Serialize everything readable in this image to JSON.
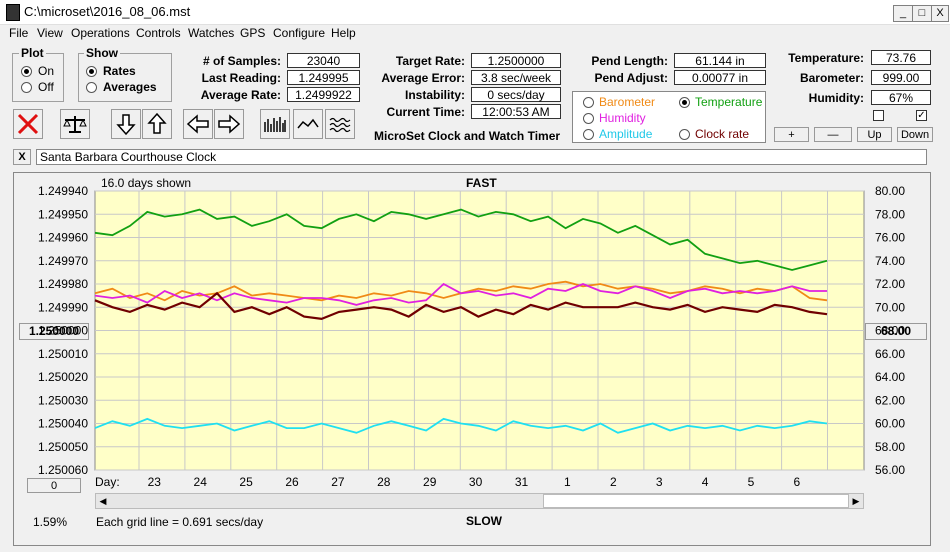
{
  "window": {
    "title": "C:\\microset\\2016_08_06.mst",
    "min": "_",
    "max": "□",
    "close": "X"
  },
  "menu": [
    "File",
    "View",
    "Operations",
    "Controls",
    "Watches",
    "GPS",
    "Configure",
    "Help"
  ],
  "plot_group": {
    "label": "Plot",
    "on": "On",
    "off": "Off",
    "selected": "On"
  },
  "show_group": {
    "label": "Show",
    "rates": "Rates",
    "averages": "Averages",
    "selected": "Rates"
  },
  "stats": {
    "samples_label": "# of Samples:",
    "samples": "23040",
    "last_label": "Last Reading:",
    "last": "1.249995",
    "avg_rate_label": "Average Rate:",
    "avg_rate": "1.2499922",
    "target_label": "Target Rate:",
    "target": "1.2500000",
    "avg_error_label": "Average Error:",
    "avg_error": "3.8 sec/week",
    "instability_label": "Instability:",
    "instability": "0 secs/day",
    "time_label": "Current Time:",
    "time": "12:00:53 AM",
    "pend_len_label": "Pend Length:",
    "pend_len": "61.144 in",
    "pend_adj_label": "Pend Adjust:",
    "pend_adj": "0.00077 in",
    "temp_label": "Temperature:",
    "temp": "73.76",
    "baro_label": "Barometer:",
    "baro": "999.00",
    "hum_label": "Humidity:",
    "hum": "67%"
  },
  "product_title": "MicroSet Clock and Watch Timer",
  "series_select": {
    "barometer": "Barometer",
    "temperature": "Temperature",
    "humidity": "Humidity",
    "amplitude": "Amplitude",
    "clock_rate": "Clock rate",
    "selected": "Temperature",
    "colors": {
      "barometer": "#f08a16",
      "temperature": "#12a012",
      "humidity": "#e020e0",
      "amplitude": "#20e0f0",
      "clock_rate": "#700000"
    }
  },
  "adjust_buttons": {
    "plus": "+",
    "minus": "—",
    "up": "Up",
    "down": "Down"
  },
  "toolbar_icons": [
    "stop-icon",
    "balance-icon",
    "arrow-down-icon",
    "arrow-up-icon",
    "arrow-left-icon",
    "arrow-right-icon",
    "bar-graph-icon",
    "line-graph-icon",
    "wave-graph-icon"
  ],
  "clock_name": "Santa Barbara Courthouse Clock",
  "clear_button": "X",
  "chart_header": {
    "days_shown": "16.0 days shown",
    "fast": "FAST",
    "slow": "SLOW",
    "grid_note": "Each grid line = 0.691 secs/day",
    "percent": "1.59%",
    "left_button": "1.250000",
    "right_button": "68.00",
    "zero_button": "0",
    "day_label": "Day:"
  },
  "chart_data": {
    "type": "line",
    "x_ticks": [
      "23",
      "24",
      "25",
      "26",
      "27",
      "28",
      "29",
      "30",
      "31",
      "1",
      "2",
      "3",
      "4",
      "5",
      "6"
    ],
    "left_axis": {
      "ticks": [
        "1.249940",
        "1.249950",
        "1.249960",
        "1.249970",
        "1.249980",
        "1.249990",
        "1.250000",
        "1.250010",
        "1.250020",
        "1.250030",
        "1.250040",
        "1.250050",
        "1.250060"
      ],
      "ylim": [
        1.24994,
        1.25006
      ],
      "inverted": true
    },
    "right_axis": {
      "ticks": [
        "80.00",
        "78.00",
        "76.00",
        "74.00",
        "72.00",
        "70.00",
        "68.00",
        "66.00",
        "64.00",
        "62.00",
        "60.00",
        "58.00",
        "56.00"
      ],
      "ylim": [
        56,
        80
      ]
    },
    "grid": true,
    "series": [
      {
        "name": "Temperature",
        "color": "#12a012",
        "axis": "right",
        "values": [
          76.4,
          76.2,
          77.0,
          78.2,
          77.8,
          78.0,
          78.4,
          77.6,
          77.8,
          77.0,
          77.4,
          78.0,
          77.0,
          76.8,
          77.6,
          78.0,
          77.4,
          78.2,
          78.0,
          77.6,
          78.0,
          78.4,
          77.8,
          78.2,
          78.0,
          77.4,
          77.8,
          76.8,
          77.6,
          77.2,
          76.4,
          77.0,
          76.2,
          75.4,
          75.8,
          74.6,
          74.2,
          73.8,
          74.0,
          73.6,
          73.2,
          73.6,
          74.0
        ]
      },
      {
        "name": "Barometer",
        "color": "#f08a16",
        "axis": "right",
        "values": [
          71.2,
          71.6,
          70.8,
          71.2,
          70.6,
          71.4,
          71.0,
          71.2,
          71.8,
          71.0,
          71.2,
          71.0,
          70.8,
          70.6,
          71.0,
          70.8,
          71.2,
          71.0,
          71.4,
          71.2,
          70.8,
          71.2,
          71.6,
          71.4,
          71.8,
          71.6,
          72.0,
          72.2,
          71.8,
          72.0,
          71.6,
          71.8,
          71.6,
          71.2,
          71.4,
          71.8,
          71.6,
          71.2,
          71.6,
          71.4,
          71.8,
          70.8,
          70.6
        ]
      },
      {
        "name": "Humidity",
        "color": "#e020e0",
        "axis": "right",
        "values": [
          71.0,
          70.8,
          71.0,
          70.4,
          71.4,
          70.8,
          71.2,
          70.6,
          71.2,
          70.8,
          70.6,
          70.4,
          70.8,
          70.8,
          70.6,
          70.2,
          70.6,
          70.8,
          70.4,
          70.6,
          72.0,
          71.2,
          71.4,
          71.0,
          71.2,
          70.8,
          71.6,
          71.4,
          72.0,
          71.4,
          71.2,
          71.8,
          71.4,
          70.8,
          71.4,
          71.6,
          71.2,
          71.4,
          71.2,
          71.4,
          71.8,
          71.4,
          71.4
        ]
      },
      {
        "name": "Amplitude",
        "color": "#20e0f0",
        "axis": "right",
        "values": [
          59.6,
          60.2,
          59.8,
          60.4,
          59.8,
          59.6,
          59.8,
          60.0,
          59.4,
          59.8,
          60.2,
          59.6,
          59.6,
          60.0,
          59.6,
          59.2,
          59.8,
          60.2,
          59.8,
          59.4,
          60.4,
          60.0,
          59.8,
          59.4,
          60.2,
          59.8,
          59.6,
          59.8,
          59.4,
          60.0,
          59.2,
          59.6,
          60.0,
          59.4,
          59.8,
          59.6,
          59.8,
          59.4,
          59.8,
          59.6,
          59.8,
          60.2,
          60.0
        ]
      },
      {
        "name": "Clock rate",
        "color": "#700000",
        "axis": "left",
        "values": [
          1.249987,
          1.24999,
          1.249992,
          1.249989,
          1.249991,
          1.249988,
          1.24999,
          1.249984,
          1.249992,
          1.24999,
          1.249993,
          1.24999,
          1.249994,
          1.249995,
          1.249992,
          1.249991,
          1.24999,
          1.249991,
          1.249994,
          1.249989,
          1.249992,
          1.24999,
          1.249994,
          1.249991,
          1.249993,
          1.249989,
          1.249991,
          1.249988,
          1.24999,
          1.24999,
          1.24999,
          1.249988,
          1.24999,
          1.249991,
          1.249989,
          1.249992,
          1.24999,
          1.249991,
          1.249992,
          1.249989,
          1.24999,
          1.249992,
          1.249993
        ]
      }
    ]
  }
}
